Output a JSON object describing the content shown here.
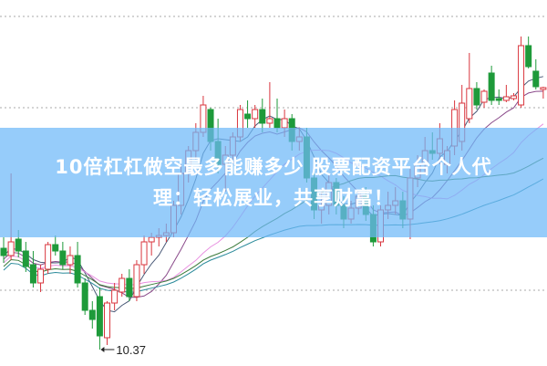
{
  "banner": {
    "line1": "10倍杠杠做空最多能赚多少 股票配资平台个人代",
    "line2": "理：轻松展业，共享财富！"
  },
  "chart_data": {
    "type": "candlestick",
    "grid": true,
    "annotations": [
      {
        "label": "10.37",
        "value": 10.37,
        "kind": "low-marker"
      }
    ],
    "colors": {
      "up": "#d9363e",
      "down": "#1e9a3a",
      "ma": [
        "#4a5a78",
        "#8a4a8a",
        "#e890e0",
        "#3a7a3a",
        "#2a8a9a"
      ]
    },
    "moving_averages": [
      5,
      10,
      20,
      30,
      60
    ],
    "ohlc": [
      [
        11.48,
        11.6,
        11.32,
        11.4
      ],
      [
        11.4,
        12.3,
        11.35,
        11.55
      ],
      [
        11.58,
        11.68,
        11.38,
        11.45
      ],
      [
        11.45,
        11.55,
        11.22,
        11.28
      ],
      [
        11.3,
        11.45,
        11.05,
        11.1
      ],
      [
        11.1,
        11.3,
        11.0,
        11.25
      ],
      [
        11.25,
        11.55,
        11.2,
        11.52
      ],
      [
        11.52,
        11.62,
        11.4,
        11.45
      ],
      [
        11.45,
        11.55,
        11.25,
        11.3
      ],
      [
        11.3,
        11.5,
        11.2,
        11.4
      ],
      [
        11.4,
        11.55,
        11.05,
        11.1
      ],
      [
        11.1,
        11.15,
        10.75,
        10.8
      ],
      [
        10.8,
        10.9,
        10.6,
        10.7
      ],
      [
        10.95,
        11.05,
        10.37,
        10.52
      ],
      [
        10.5,
        10.9,
        10.42,
        10.88
      ],
      [
        10.88,
        11.1,
        10.8,
        11.02
      ],
      [
        11.0,
        11.2,
        10.95,
        11.15
      ],
      [
        11.15,
        11.25,
        10.9,
        10.95
      ],
      [
        10.95,
        11.35,
        10.9,
        11.3
      ],
      [
        11.3,
        11.62,
        11.2,
        11.55
      ],
      [
        11.55,
        11.65,
        11.4,
        11.6
      ],
      [
        11.6,
        11.7,
        11.5,
        11.62
      ],
      [
        11.62,
        11.75,
        11.55,
        11.65
      ],
      [
        11.65,
        12.0,
        11.6,
        11.95
      ],
      [
        11.95,
        12.4,
        11.85,
        12.3
      ],
      [
        12.3,
        12.6,
        12.2,
        12.55
      ],
      [
        12.55,
        12.85,
        12.45,
        12.75
      ],
      [
        12.75,
        13.15,
        12.7,
        13.05
      ],
      [
        13.0,
        13.02,
        12.55,
        12.65
      ],
      [
        12.65,
        12.9,
        12.3,
        12.4
      ],
      [
        12.4,
        12.6,
        12.1,
        12.5
      ],
      [
        12.5,
        12.75,
        12.45,
        12.7
      ],
      [
        12.7,
        13.05,
        12.65,
        13.0
      ],
      [
        12.95,
        13.1,
        12.8,
        12.9
      ],
      [
        12.9,
        13.05,
        12.8,
        13.0
      ],
      [
        13.0,
        13.12,
        12.75,
        12.85
      ],
      [
        12.85,
        13.3,
        12.8,
        12.9
      ],
      [
        12.9,
        13.12,
        12.75,
        12.8
      ],
      [
        12.8,
        13.0,
        12.7,
        12.9
      ],
      [
        12.9,
        12.95,
        12.55,
        12.65
      ],
      [
        12.65,
        12.8,
        12.55,
        12.7
      ],
      [
        12.7,
        12.8,
        12.2,
        12.25
      ],
      [
        12.25,
        12.4,
        11.8,
        11.9
      ],
      [
        11.9,
        12.1,
        11.75,
        11.95
      ],
      [
        11.95,
        12.3,
        11.85,
        12.2
      ],
      [
        12.2,
        12.25,
        11.85,
        11.95
      ],
      [
        11.95,
        12.05,
        11.7,
        11.8
      ],
      [
        11.8,
        12.0,
        11.75,
        11.92
      ],
      [
        11.92,
        12.1,
        11.85,
        12.05
      ],
      [
        12.05,
        12.15,
        11.78,
        11.85
      ],
      [
        11.85,
        11.95,
        11.5,
        11.55
      ],
      [
        11.55,
        11.95,
        11.5,
        11.9
      ],
      [
        11.9,
        12.1,
        11.8,
        11.95
      ],
      [
        11.95,
        12.15,
        11.85,
        12.0
      ],
      [
        12.0,
        12.1,
        11.7,
        11.8
      ],
      [
        11.8,
        12.35,
        11.58,
        12.25
      ],
      [
        12.25,
        12.5,
        12.15,
        12.4
      ],
      [
        12.4,
        12.7,
        12.3,
        12.55
      ],
      [
        12.55,
        12.75,
        12.45,
        12.52
      ],
      [
        12.52,
        12.85,
        12.4,
        12.68
      ],
      [
        12.4,
        12.6,
        12.3,
        12.55
      ],
      [
        12.6,
        13.1,
        12.5,
        13.0
      ],
      [
        12.65,
        13.27,
        12.55,
        13.07
      ],
      [
        12.9,
        13.62,
        12.85,
        13.23
      ],
      [
        13.23,
        13.3,
        13.0,
        13.05
      ],
      [
        13.08,
        13.22,
        13.02,
        13.2
      ],
      [
        13.4,
        13.48,
        13.05,
        13.1
      ],
      [
        13.12,
        13.22,
        13.05,
        13.1
      ],
      [
        13.1,
        13.27,
        13.08,
        13.14
      ],
      [
        13.12,
        13.18,
        13.1,
        13.15
      ],
      [
        13.05,
        13.8,
        13.02,
        13.7
      ],
      [
        13.7,
        13.8,
        13.45,
        13.47
      ],
      [
        13.42,
        13.55,
        13.22,
        13.25
      ],
      [
        13.22,
        13.25,
        13.12,
        13.24
      ]
    ]
  }
}
